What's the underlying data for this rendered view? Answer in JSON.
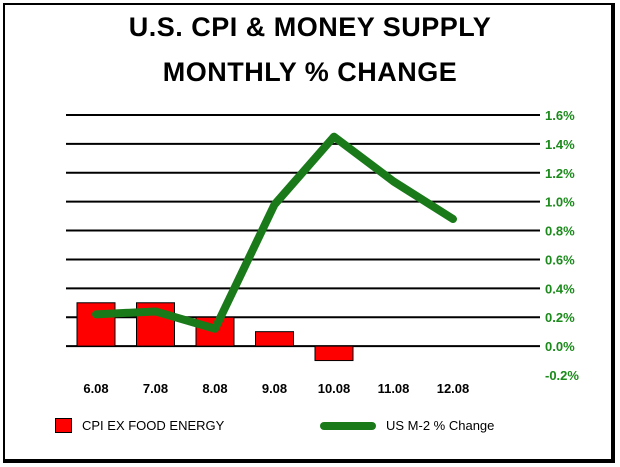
{
  "title_line1": "U.S. CPI & MONEY SUPPLY",
  "title_line2": "MONTHLY % CHANGE",
  "colors": {
    "cpi_bar": "#ff0000",
    "m2_line": "#1a7a1a",
    "right_axis_text": "#1a8a1a",
    "grid": "#000000"
  },
  "chart_data": {
    "type": "bar",
    "categories": [
      "6.08",
      "7.08",
      "8.08",
      "9.08",
      "10.08",
      "11.08",
      "12.08"
    ],
    "series": [
      {
        "name": "CPI EX FOOD ENERGY",
        "type": "bar",
        "values": [
          0.3,
          0.3,
          0.2,
          0.1,
          -0.1,
          null,
          null
        ]
      },
      {
        "name": "US M-2 % Change",
        "type": "line",
        "values": [
          0.22,
          0.24,
          0.12,
          0.98,
          1.45,
          1.14,
          0.88
        ]
      }
    ],
    "y_ticks": [
      "1.6%",
      "1.4%",
      "1.2%",
      "1.0%",
      "0.8%",
      "0.6%",
      "0.4%",
      "0.2%",
      "0.0%",
      "-0.2%"
    ],
    "ylim": [
      -0.2,
      1.6
    ],
    "y_axis_side": "right",
    "grid": true,
    "legend_placement": "bottom"
  }
}
